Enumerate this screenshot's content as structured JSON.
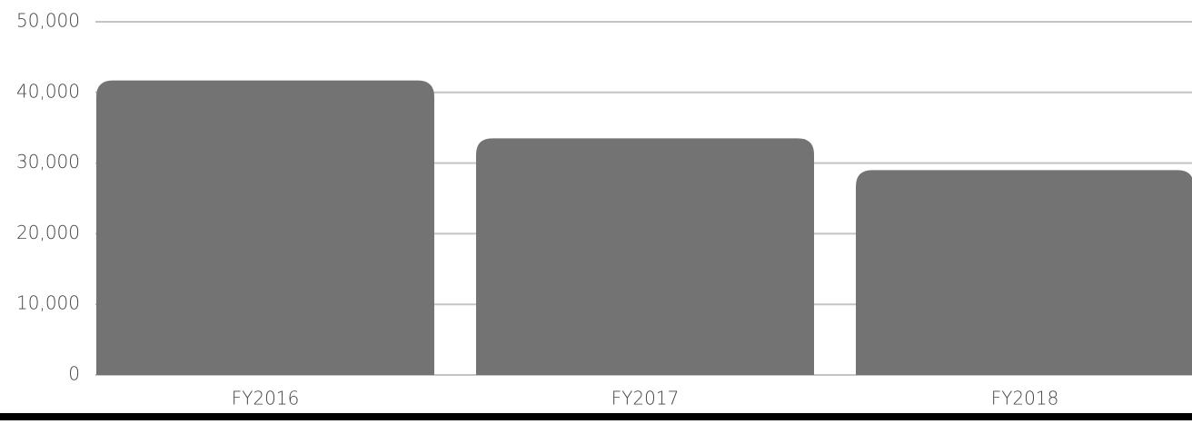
{
  "chart_data": {
    "type": "bar",
    "categories": [
      "FY2016",
      "FY2017",
      "FY2018"
    ],
    "values": [
      41700,
      33500,
      29000
    ],
    "color": "#737373",
    "ylim": [
      0,
      50000
    ],
    "yticks": [
      0,
      {
        "value": 10000,
        "label": "10,000"
      },
      {
        "value": 20000,
        "label": "20,000"
      },
      {
        "value": 30000,
        "label": "30,000"
      },
      {
        "value": 40000,
        "label": "40,000"
      },
      {
        "value": 50000,
        "label": "50,000"
      }
    ],
    "grid": true
  }
}
